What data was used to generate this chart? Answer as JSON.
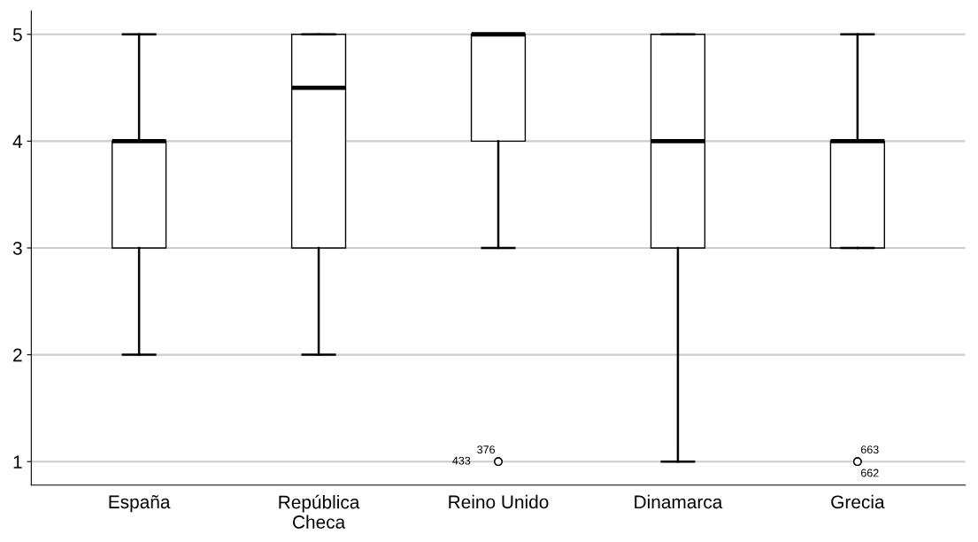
{
  "chart_data": {
    "type": "box",
    "categories": [
      "España",
      "República\nCheca",
      "Reino Unido",
      "Dinamarca",
      "Grecia"
    ],
    "boxes": [
      {
        "low": 2,
        "q1": 3,
        "median": 4,
        "q3": 4,
        "high": 5
      },
      {
        "low": 2,
        "q1": 3,
        "median": 4.5,
        "q3": 5,
        "high": 5
      },
      {
        "low": 3,
        "q1": 4,
        "median": 5,
        "q3": 5,
        "high": 5,
        "outliers": [
          1,
          1
        ]
      },
      {
        "low": 1,
        "q1": 3,
        "median": 4,
        "q3": 5,
        "high": 5
      },
      {
        "low": 3,
        "q1": 3,
        "median": 4,
        "q3": 4,
        "high": 5,
        "outliers": [
          1,
          1
        ]
      }
    ],
    "annotations": [
      "376",
      "433",
      "663",
      "662"
    ],
    "ylim": [
      0.78,
      5.22
    ],
    "yticks": [
      1,
      2,
      3,
      4,
      5
    ],
    "grid": "y",
    "color": "#ffffff"
  }
}
